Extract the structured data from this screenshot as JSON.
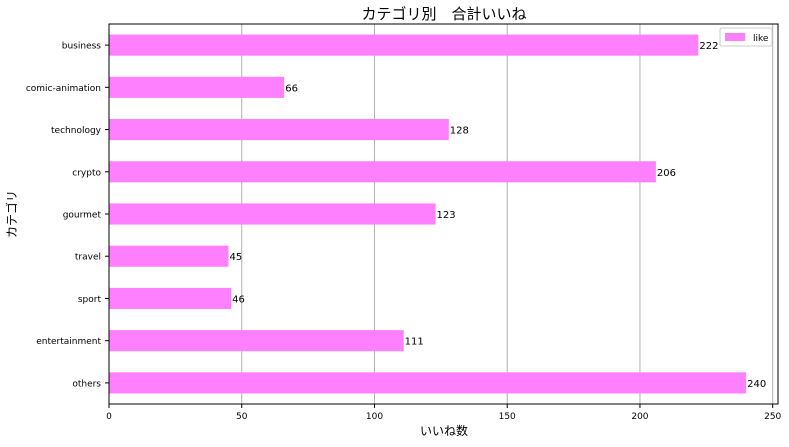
{
  "chart_data": {
    "type": "bar",
    "orientation": "horizontal",
    "title": "カテゴリ別　合計いいね",
    "xlabel": "いいね数",
    "ylabel": "カテゴリ",
    "categories": [
      "business",
      "comic-animation",
      "technology",
      "crypto",
      "gourmet",
      "travel",
      "sport",
      "entertainment",
      "others"
    ],
    "series": [
      {
        "name": "like",
        "values": [
          222,
          66,
          128,
          206,
          123,
          45,
          46,
          111,
          240
        ],
        "color": "#ff80ff"
      }
    ],
    "data_labels": [
      "222",
      "66",
      "128",
      "206",
      "123",
      "45",
      "46",
      "111",
      "240"
    ],
    "xlim": [
      0,
      252
    ],
    "xticks": [
      0,
      50,
      100,
      150,
      200,
      250
    ],
    "xtick_labels": [
      "0",
      "50",
      "100",
      "150",
      "200",
      "250"
    ],
    "grid": "x-axis vertical lines",
    "grid_color": "#b0b0b0",
    "legend_position": "top-right"
  }
}
